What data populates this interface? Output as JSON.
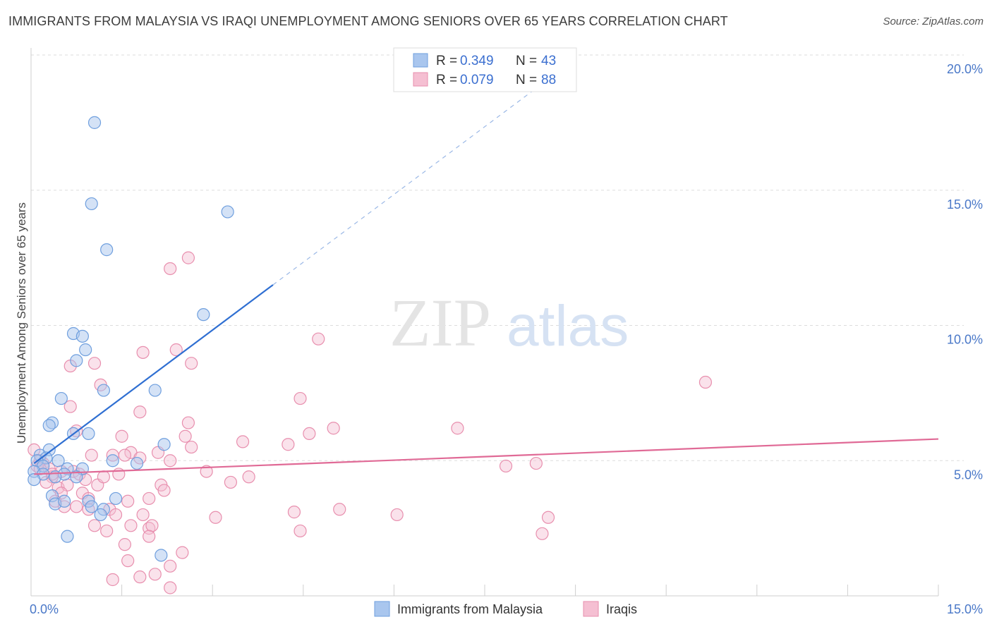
{
  "title": "IMMIGRANTS FROM MALAYSIA VS IRAQI UNEMPLOYMENT AMONG SENIORS OVER 65 YEARS CORRELATION CHART",
  "source": "Source: ZipAtlas.com",
  "watermark": {
    "zip": "ZIP",
    "atlas": "atlas"
  },
  "colors": {
    "blue_fill": "#a9c6ee",
    "blue_stroke": "#6f9fde",
    "blue_line": "#2f6fd2",
    "pink_fill": "#f5bfd2",
    "pink_stroke": "#e88fae",
    "pink_line": "#e06a96",
    "grid": "#dddddd",
    "tick_text": "#4a78c8"
  },
  "legend": {
    "rows": [
      {
        "r_label": "R =",
        "r_value": "0.349",
        "n_label": "N =",
        "n_value": "43"
      },
      {
        "r_label": "R =",
        "r_value": "0.079",
        "n_label": "N =",
        "n_value": "88"
      }
    ]
  },
  "chart_data": {
    "type": "scatter",
    "title": "IMMIGRANTS FROM MALAYSIA VS IRAQI UNEMPLOYMENT AMONG SENIORS OVER 65 YEARS CORRELATION CHART",
    "xlabel": "",
    "ylabel": "Unemployment Among Seniors over 65 years",
    "xlim": [
      0,
      15
    ],
    "ylim": [
      0,
      20
    ],
    "x_tick_labels": [
      {
        "value": 0,
        "label": "0.0%"
      },
      {
        "value": 15,
        "label": "15.0%"
      }
    ],
    "y_tick_labels": [
      {
        "value": 5,
        "label": "5.0%"
      },
      {
        "value": 10,
        "label": "10.0%"
      },
      {
        "value": 15,
        "label": "15.0%"
      },
      {
        "value": 20,
        "label": "20.0%"
      }
    ],
    "grid": true,
    "legend_position": "top-center",
    "series": [
      {
        "name": "Immigrants from Malaysia",
        "color": "#a9c6ee",
        "r": 0.349,
        "n": 43,
        "trend": {
          "x0": 0.05,
          "y0": 4.9,
          "x1": 4.0,
          "y1": 11.5,
          "dash_to_x": 9.0
        },
        "points": [
          [
            1.05,
            17.5
          ],
          [
            1.0,
            14.5
          ],
          [
            1.25,
            12.8
          ],
          [
            3.25,
            14.2
          ],
          [
            2.85,
            10.4
          ],
          [
            0.7,
            9.7
          ],
          [
            0.85,
            9.6
          ],
          [
            0.9,
            9.1
          ],
          [
            0.75,
            8.7
          ],
          [
            1.2,
            7.6
          ],
          [
            2.05,
            7.6
          ],
          [
            0.5,
            7.3
          ],
          [
            0.35,
            6.4
          ],
          [
            0.3,
            6.3
          ],
          [
            0.7,
            6.0
          ],
          [
            0.95,
            6.0
          ],
          [
            2.2,
            5.6
          ],
          [
            0.3,
            5.4
          ],
          [
            0.15,
            5.2
          ],
          [
            0.25,
            5.1
          ],
          [
            0.1,
            5.0
          ],
          [
            0.45,
            5.0
          ],
          [
            1.35,
            5.0
          ],
          [
            1.75,
            4.9
          ],
          [
            0.2,
            4.8
          ],
          [
            0.6,
            4.7
          ],
          [
            0.85,
            4.7
          ],
          [
            0.05,
            4.6
          ],
          [
            0.2,
            4.5
          ],
          [
            0.55,
            4.5
          ],
          [
            0.75,
            4.4
          ],
          [
            0.05,
            4.3
          ],
          [
            0.4,
            4.4
          ],
          [
            0.35,
            3.7
          ],
          [
            1.4,
            3.6
          ],
          [
            0.4,
            3.4
          ],
          [
            0.55,
            3.5
          ],
          [
            0.95,
            3.5
          ],
          [
            1.0,
            3.3
          ],
          [
            1.2,
            3.2
          ],
          [
            1.15,
            3.0
          ],
          [
            0.6,
            2.2
          ],
          [
            2.15,
            1.5
          ]
        ]
      },
      {
        "name": "Iraqis",
        "color": "#f5bfd2",
        "r": 0.079,
        "n": 88,
        "trend": {
          "x0": 0.05,
          "y0": 4.5,
          "x1": 15.0,
          "y1": 5.8
        },
        "points": [
          [
            2.6,
            12.5
          ],
          [
            2.3,
            12.1
          ],
          [
            4.75,
            9.5
          ],
          [
            2.4,
            9.1
          ],
          [
            1.85,
            9.0
          ],
          [
            2.65,
            8.6
          ],
          [
            0.65,
            8.5
          ],
          [
            1.05,
            8.6
          ],
          [
            11.15,
            7.9
          ],
          [
            1.15,
            7.8
          ],
          [
            4.45,
            7.3
          ],
          [
            0.65,
            7.0
          ],
          [
            1.8,
            6.8
          ],
          [
            2.6,
            6.4
          ],
          [
            5.0,
            6.2
          ],
          [
            7.05,
            6.2
          ],
          [
            0.75,
            6.1
          ],
          [
            4.6,
            6.0
          ],
          [
            1.5,
            5.9
          ],
          [
            2.55,
            5.9
          ],
          [
            3.5,
            5.7
          ],
          [
            4.25,
            5.6
          ],
          [
            2.65,
            5.5
          ],
          [
            1.65,
            5.3
          ],
          [
            2.1,
            5.3
          ],
          [
            1.0,
            5.2
          ],
          [
            1.35,
            5.2
          ],
          [
            1.55,
            5.2
          ],
          [
            1.8,
            5.1
          ],
          [
            2.3,
            5.0
          ],
          [
            0.05,
            5.4
          ],
          [
            0.15,
            5.0
          ],
          [
            0.2,
            4.9
          ],
          [
            0.1,
            4.8
          ],
          [
            0.3,
            4.7
          ],
          [
            0.5,
            4.6
          ],
          [
            0.7,
            4.6
          ],
          [
            7.85,
            4.8
          ],
          [
            8.35,
            4.9
          ],
          [
            3.6,
            4.4
          ],
          [
            3.3,
            4.2
          ],
          [
            0.35,
            4.4
          ],
          [
            0.25,
            4.2
          ],
          [
            0.45,
            4.0
          ],
          [
            0.6,
            4.1
          ],
          [
            0.85,
            3.8
          ],
          [
            1.1,
            4.1
          ],
          [
            2.15,
            4.1
          ],
          [
            2.2,
            3.9
          ],
          [
            0.5,
            3.8
          ],
          [
            0.95,
            3.6
          ],
          [
            1.95,
            3.6
          ],
          [
            1.6,
            3.5
          ],
          [
            0.75,
            3.3
          ],
          [
            0.95,
            3.2
          ],
          [
            1.3,
            3.2
          ],
          [
            1.4,
            3.0
          ],
          [
            4.35,
            3.1
          ],
          [
            5.1,
            3.2
          ],
          [
            6.05,
            3.0
          ],
          [
            3.05,
            2.9
          ],
          [
            8.55,
            2.9
          ],
          [
            1.05,
            2.6
          ],
          [
            1.65,
            2.6
          ],
          [
            1.95,
            2.5
          ],
          [
            2.0,
            2.6
          ],
          [
            1.25,
            2.4
          ],
          [
            4.45,
            2.4
          ],
          [
            8.45,
            2.3
          ],
          [
            1.95,
            2.2
          ],
          [
            1.55,
            1.9
          ],
          [
            2.5,
            1.6
          ],
          [
            1.6,
            1.3
          ],
          [
            2.3,
            1.1
          ],
          [
            1.35,
            0.6
          ],
          [
            1.8,
            0.7
          ],
          [
            2.05,
            0.8
          ],
          [
            2.3,
            0.3
          ],
          [
            0.35,
            4.5
          ],
          [
            0.8,
            4.5
          ],
          [
            1.2,
            4.4
          ],
          [
            0.15,
            4.7
          ],
          [
            0.4,
            3.5
          ],
          [
            1.85,
            3.0
          ],
          [
            0.55,
            3.3
          ],
          [
            2.9,
            4.6
          ],
          [
            0.9,
            4.3
          ],
          [
            1.45,
            4.5
          ]
        ]
      }
    ]
  }
}
